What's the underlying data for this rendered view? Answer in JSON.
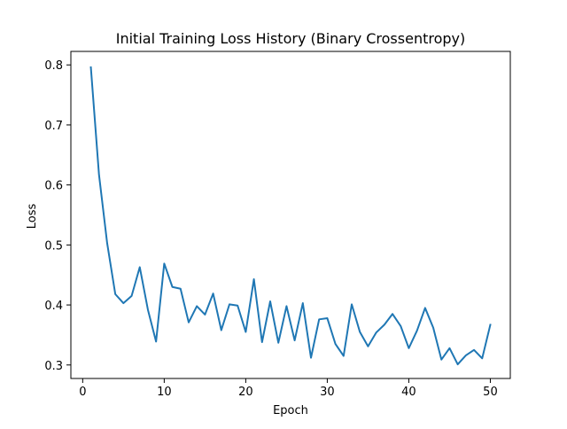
{
  "chart_data": {
    "type": "line",
    "title": "Initial Training Loss History (Binary Crossentropy)",
    "xlabel": "Epoch",
    "ylabel": "Loss",
    "xlim": [
      -1.45,
      52.45
    ],
    "ylim": [
      0.2775,
      0.8225
    ],
    "xticks": [
      0,
      10,
      20,
      30,
      40,
      50
    ],
    "yticks": [
      0.3,
      0.4,
      0.5,
      0.6,
      0.7,
      0.8
    ],
    "ytick_labels": [
      "0.3",
      "0.4",
      "0.5",
      "0.6",
      "0.7",
      "0.8"
    ],
    "grid": false,
    "series": [
      {
        "color": "#1f77b4",
        "x": [
          1,
          2,
          3,
          4,
          5,
          6,
          7,
          8,
          9,
          10,
          11,
          12,
          13,
          14,
          15,
          16,
          17,
          18,
          19,
          20,
          21,
          22,
          23,
          24,
          25,
          26,
          27,
          28,
          29,
          30,
          31,
          32,
          33,
          34,
          35,
          36,
          37,
          38,
          39,
          40,
          41,
          42,
          43,
          44,
          45,
          46,
          47,
          48,
          49,
          50
        ],
        "values": [
          0.796,
          0.617,
          0.503,
          0.418,
          0.403,
          0.415,
          0.463,
          0.392,
          0.339,
          0.469,
          0.43,
          0.427,
          0.371,
          0.398,
          0.384,
          0.419,
          0.358,
          0.401,
          0.399,
          0.355,
          0.443,
          0.338,
          0.406,
          0.337,
          0.398,
          0.341,
          0.403,
          0.312,
          0.376,
          0.378,
          0.335,
          0.315,
          0.401,
          0.355,
          0.331,
          0.354,
          0.367,
          0.385,
          0.365,
          0.328,
          0.357,
          0.395,
          0.362,
          0.309,
          0.328,
          0.301,
          0.316,
          0.325,
          0.311,
          0.367
        ]
      }
    ]
  }
}
